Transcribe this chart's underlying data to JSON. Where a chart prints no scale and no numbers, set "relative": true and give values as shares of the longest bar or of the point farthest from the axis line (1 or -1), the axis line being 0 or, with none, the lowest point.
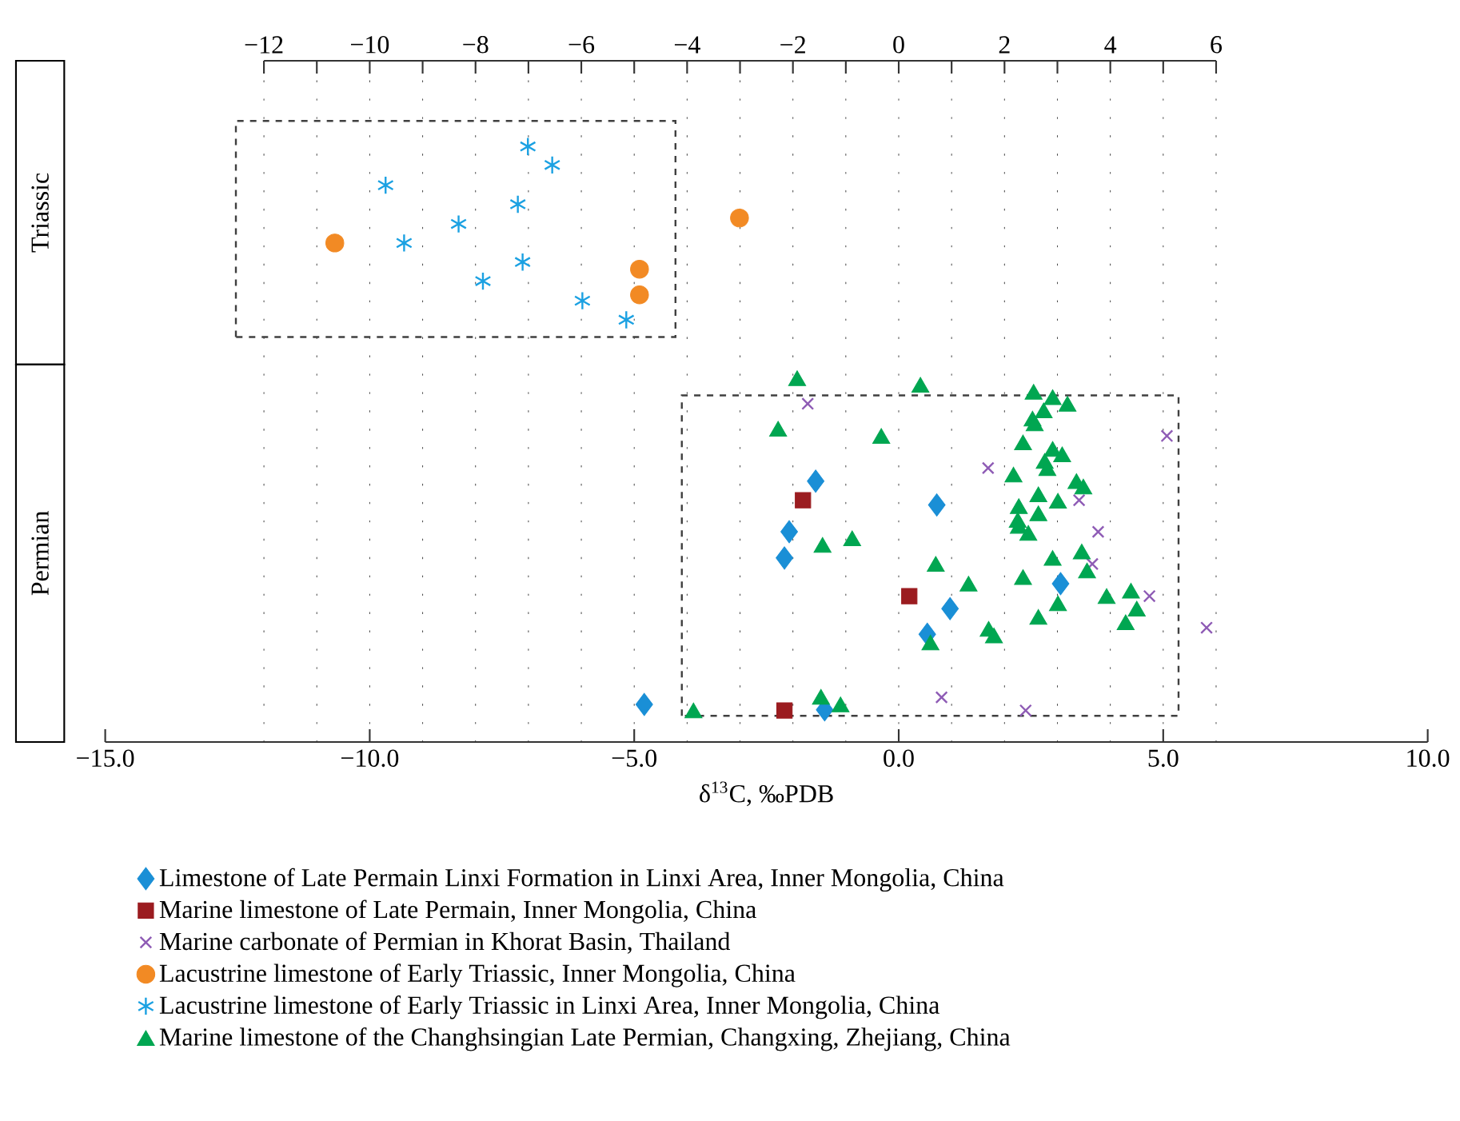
{
  "chart_data": {
    "type": "scatter",
    "xlabel": "δ$^{13}$C, ‰PDB",
    "relative": true,
    "grid": "x",
    "legend": "bottom",
    "annotations": [
      "Triassic",
      "Permian"
    ],
    "xlim": [
      -15,
      10
    ],
    "xticks": [
      {
        "value": -15,
        "label": "−15.0"
      },
      {
        "value": -10,
        "label": "−10.0"
      },
      {
        "value": -5,
        "label": "−5.0"
      },
      {
        "value": 0,
        "label": "0.0"
      },
      {
        "value": 5,
        "label": "5.0"
      },
      {
        "value": 10,
        "label": "10.0"
      }
    ],
    "x2lim": [
      -15,
      10
    ],
    "x2ticks": [
      {
        "value": -12,
        "label": "−12"
      },
      {
        "value": -11,
        "label": null
      },
      {
        "value": -10,
        "label": "−10"
      },
      {
        "value": -9,
        "label": null
      },
      {
        "value": -8,
        "label": "−8"
      },
      {
        "value": -7,
        "label": null
      },
      {
        "value": -6,
        "label": "−6"
      },
      {
        "value": -5,
        "label": null
      },
      {
        "value": -4,
        "label": "−4"
      },
      {
        "value": -3,
        "label": null
      },
      {
        "value": -2,
        "label": "−2"
      },
      {
        "value": -1,
        "label": null
      },
      0,
      {
        "value": 1,
        "label": null
      },
      2,
      {
        "value": 3,
        "label": null
      },
      4,
      {
        "value": 5,
        "label": null
      },
      6
    ],
    "series": [
      {
        "name": "Limestone of Late Permain Linxi Formation in Linxi Area, Inner Mongolia, China",
        "color": "#1a8fd6",
        "marker": "diamond",
        "x": [
          -1.57,
          0.72,
          -2.07,
          -2.16,
          3.06,
          0.97,
          0.54,
          -1.4,
          -4.81
        ],
        "values": [
          0.438,
          0.398,
          0.353,
          0.309,
          0.266,
          0.224,
          0.181,
          0.054,
          0.063
        ]
      },
      {
        "name": "Marine limestone of Late Permain, Inner Mongolia, China",
        "color": "#9b1c20",
        "marker": "square",
        "x": [
          -1.81,
          0.2,
          -2.16
        ],
        "values": [
          0.406,
          0.245,
          0.053
        ]
      },
      {
        "name": "Marine carbonate of Permian in Khorat Basin, Thailand",
        "color": "#8e5bb5",
        "marker": "cross",
        "x": [
          -1.72,
          1.69,
          3.41,
          3.77,
          3.66,
          4.74,
          5.82,
          0.81,
          2.4,
          5.07
        ],
        "values": [
          0.568,
          0.46,
          0.406,
          0.353,
          0.299,
          0.245,
          0.192,
          0.075,
          0.053,
          0.514
        ]
      },
      {
        "name": "Lacustrine limestone of Early Triassic, Inner Mongolia, China",
        "color": "#f28a24",
        "marker": "circle",
        "x": [
          -10.66,
          -3.01,
          -4.9,
          -4.9
        ],
        "values": [
          0.838,
          0.88,
          0.794,
          0.751
        ]
      },
      {
        "name": "Lacustrine limestone of Early Triassic in Linxi Area, Inner Mongolia, China",
        "color": "#1ba1e2",
        "x": [
          -7.01,
          -6.55,
          -9.7,
          -7.2,
          -8.32,
          -9.35,
          -7.11,
          -7.86,
          -5.98,
          -5.15
        ],
        "values": [
          1.0,
          0.969,
          0.935,
          0.903,
          0.87,
          0.838,
          0.806,
          0.774,
          0.741,
          0.709
        ]
      },
      {
        "name": "Marine limestone of the Changhsingian Late Permian, Changxing, Zhejiang, China",
        "color": "#00a651",
        "marker": "triangle",
        "x": [
          -1.92,
          0.41,
          2.55,
          2.91,
          3.19,
          2.74,
          2.53,
          2.57,
          -2.28,
          -0.33,
          2.35,
          2.91,
          3.09,
          2.76,
          2.81,
          2.17,
          3.36,
          3.49,
          2.64,
          3.01,
          2.27,
          2.64,
          2.25,
          2.27,
          2.45,
          -1.44,
          -0.88,
          2.91,
          3.46,
          3.56,
          0.7,
          2.35,
          1.32,
          3.93,
          4.39,
          4.5,
          4.29,
          3.01,
          2.64,
          1.7,
          1.8,
          0.6,
          -1.47,
          -1.1,
          -3.88
        ],
        "values": [
          0.611,
          0.6,
          0.588,
          0.579,
          0.568,
          0.557,
          0.543,
          0.535,
          0.526,
          0.514,
          0.503,
          0.492,
          0.483,
          0.472,
          0.46,
          0.449,
          0.438,
          0.429,
          0.416,
          0.405,
          0.396,
          0.384,
          0.373,
          0.363,
          0.351,
          0.331,
          0.342,
          0.309,
          0.32,
          0.288,
          0.299,
          0.277,
          0.266,
          0.245,
          0.254,
          0.224,
          0.201,
          0.233,
          0.21,
          0.19,
          0.179,
          0.167,
          0.076,
          0.063,
          0.053
        ]
      }
    ]
  }
}
